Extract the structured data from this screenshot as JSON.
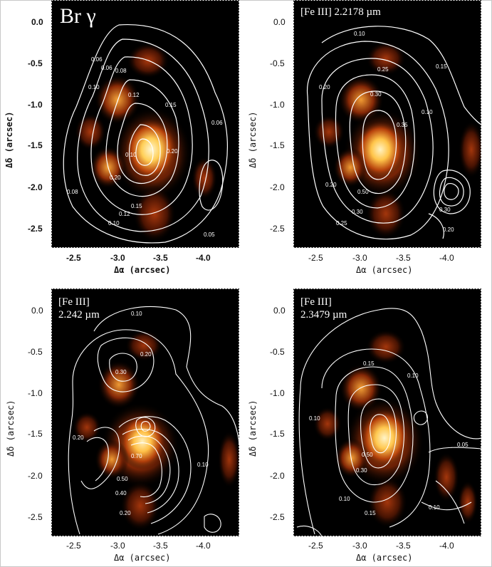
{
  "figure": {
    "panels": [
      {
        "id": "brg",
        "title_lines": [
          "Br γ"
        ],
        "xlabel": "Δα (arcsec)",
        "ylabel": "Δδ (arcsec)",
        "xticks": [
          "-2.5",
          "-3.0",
          "-3.5",
          "-4.0"
        ],
        "yticks": [
          "0.0",
          "-0.5",
          "-1.0",
          "-1.5",
          "-2.0",
          "-2.5"
        ],
        "contour_labels": [
          "0.06",
          "0.06",
          "0.08",
          "0.10",
          "0.12",
          "0.15",
          "0.20",
          "0.10",
          "0.20",
          "0.15",
          "0.12",
          "0.10",
          "0.08",
          "0.06",
          "0.05"
        ]
      },
      {
        "id": "fe2178",
        "title_lines": [
          "[Fe III] 2.2178 µm"
        ],
        "xlabel": "Δα (arcsec)",
        "ylabel": "Δδ (arcsec)",
        "xticks": [
          "-2.5",
          "-3.0",
          "-3.5",
          "-4.0"
        ],
        "yticks": [
          "0.0",
          "-0.5",
          "-1.0",
          "-1.5",
          "-2.0",
          "-2.5"
        ],
        "contour_labels": [
          "0.10",
          "0.15",
          "0.20",
          "0.25",
          "0.30",
          "0.35",
          "0.10",
          "0.20",
          "0.50",
          "0.30",
          "0.25",
          "0.20",
          "0.30"
        ]
      },
      {
        "id": "fe2242",
        "title_lines": [
          "[Fe III]",
          "2.242 µm"
        ],
        "xlabel": "Δα (arcsec)",
        "ylabel": "Δδ (arcsec)",
        "xticks": [
          "-2.5",
          "-3.0",
          "-3.5",
          "-4.0"
        ],
        "yticks": [
          "0.0",
          "-0.5",
          "-1.0",
          "-1.5",
          "-2.0",
          "-2.5"
        ],
        "contour_labels": [
          "0.10",
          "0.20",
          "0.30",
          "0.20",
          "0.70",
          "0.10",
          "0.50",
          "0.40",
          "0.20"
        ]
      },
      {
        "id": "fe23479",
        "title_lines": [
          "[Fe III]",
          "2.3479 µm"
        ],
        "xlabel": "Δα (arcsec)",
        "ylabel": "Δδ (arcsec)",
        "xticks": [
          "-2.5",
          "-3.0",
          "-3.5",
          "-4.0"
        ],
        "yticks": [
          "0.0",
          "-0.5",
          "-1.0",
          "-1.5",
          "-2.0",
          "-2.5"
        ],
        "contour_labels": [
          "0.15",
          "0.10",
          "0.10",
          "0.05",
          "0.30",
          "0.50",
          "0.10",
          "0.15",
          "0.10"
        ]
      }
    ],
    "colors": {
      "background": "#000000",
      "contour": "#ffffff",
      "frame": "#ffffff"
    }
  }
}
